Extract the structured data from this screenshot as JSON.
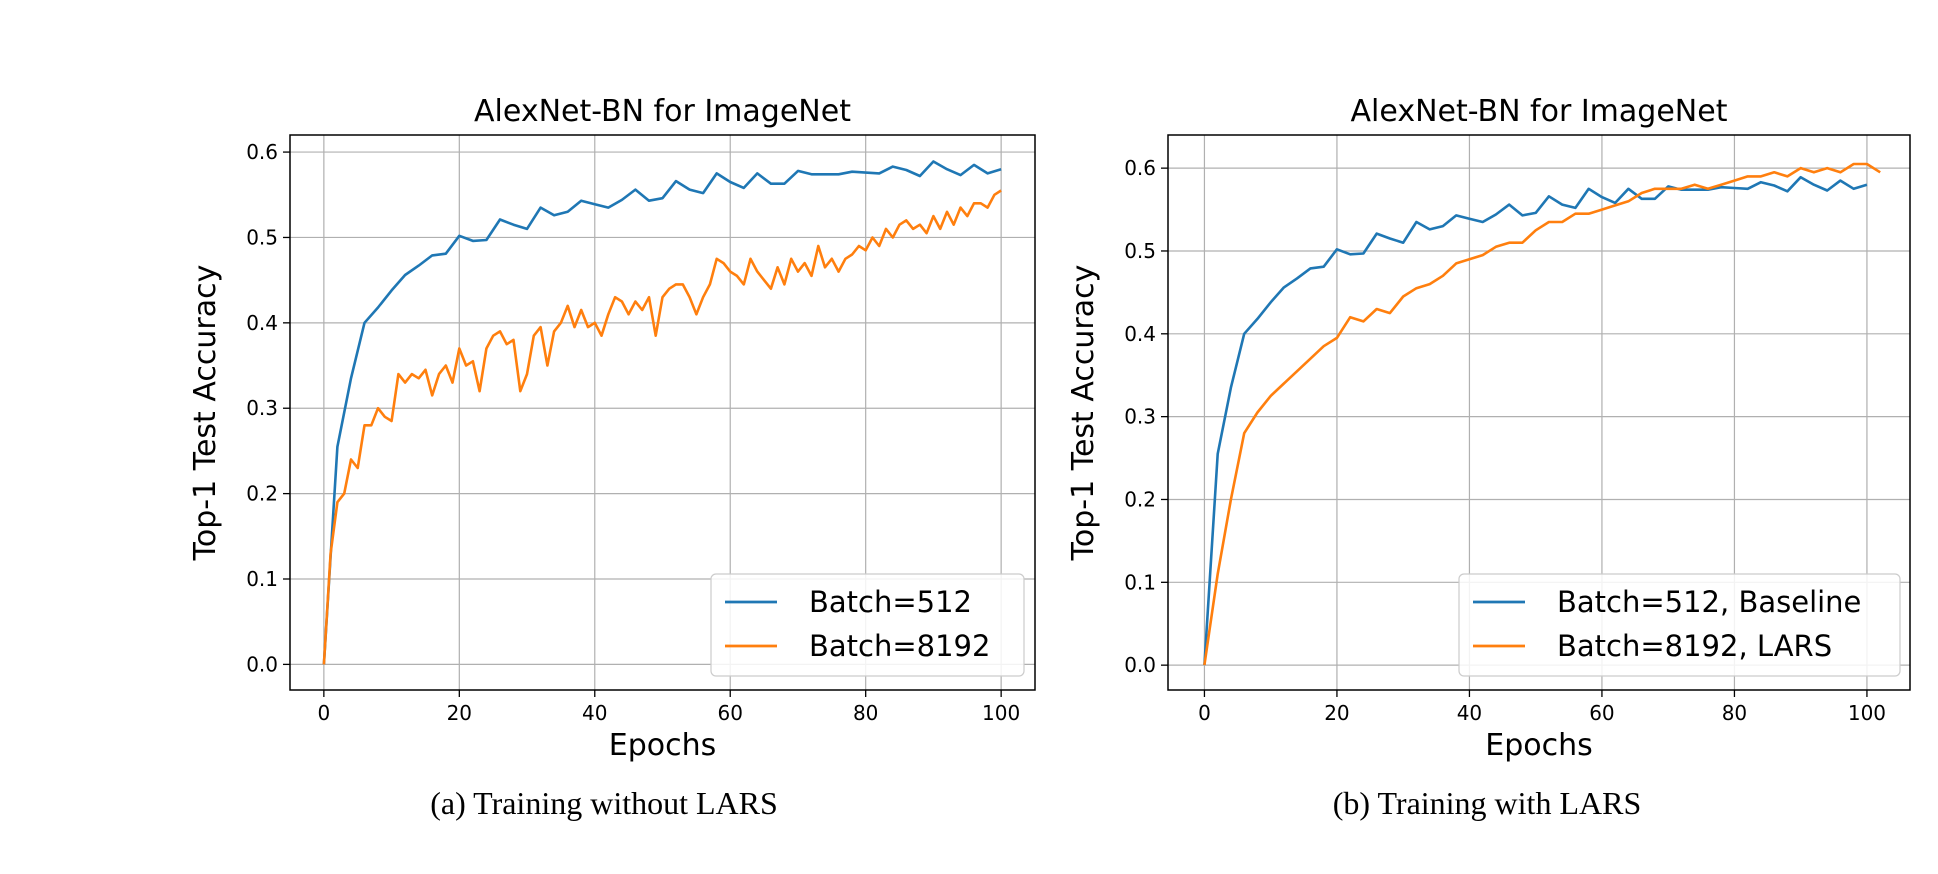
{
  "chart_data": [
    {
      "type": "line",
      "title": "AlexNet-BN for ImageNet",
      "xlabel": "Epochs",
      "ylabel": "Top-1 Test Accuracy",
      "xlim": [
        -5,
        105
      ],
      "ylim": [
        -0.03,
        0.62
      ],
      "xticks": [
        0,
        20,
        40,
        60,
        80,
        100
      ],
      "xtick_labels": [
        "0",
        "20",
        "40",
        "60",
        "80",
        "100"
      ],
      "yticks": [
        0.0,
        0.1,
        0.2,
        0.3,
        0.4,
        0.5,
        0.6
      ],
      "ytick_labels": [
        "0.0",
        "0.1",
        "0.2",
        "0.3",
        "0.4",
        "0.5",
        "0.6"
      ],
      "grid": true,
      "legend_position": "bottom-right",
      "caption": "(a) Training without LARS",
      "series": [
        {
          "name": "Batch=512",
          "color": "#1f77b4",
          "x": [
            0,
            2,
            4,
            6,
            8,
            10,
            12,
            14,
            16,
            18,
            20,
            22,
            24,
            26,
            28,
            30,
            32,
            34,
            36,
            38,
            40,
            42,
            44,
            46,
            48,
            50,
            52,
            54,
            56,
            58,
            60,
            62,
            64,
            66,
            68,
            70,
            72,
            74,
            76,
            78,
            80,
            82,
            84,
            86,
            88,
            90,
            92,
            94,
            96,
            98,
            100
          ],
          "y": [
            0.0,
            0.255,
            0.335,
            0.4,
            0.418,
            0.438,
            0.456,
            0.467,
            0.479,
            0.481,
            0.502,
            0.496,
            0.497,
            0.521,
            0.515,
            0.51,
            0.535,
            0.526,
            0.53,
            0.543,
            0.539,
            0.535,
            0.544,
            0.556,
            0.543,
            0.546,
            0.566,
            0.556,
            0.552,
            0.575,
            0.565,
            0.558,
            0.575,
            0.563,
            0.563,
            0.578,
            0.574,
            0.574,
            0.574,
            0.577,
            0.576,
            0.575,
            0.583,
            0.579,
            0.572,
            0.589,
            0.58,
            0.573,
            0.585,
            0.575,
            0.58
          ]
        },
        {
          "name": "Batch=8192",
          "color": "#ff7f0e",
          "x": [
            0,
            1,
            2,
            3,
            4,
            5,
            6,
            7,
            8,
            9,
            10,
            11,
            12,
            13,
            14,
            15,
            16,
            17,
            18,
            19,
            20,
            21,
            22,
            23,
            24,
            25,
            26,
            27,
            28,
            29,
            30,
            31,
            32,
            33,
            34,
            35,
            36,
            37,
            38,
            39,
            40,
            41,
            42,
            43,
            44,
            45,
            46,
            47,
            48,
            49,
            50,
            51,
            52,
            53,
            54,
            55,
            56,
            57,
            58,
            59,
            60,
            61,
            62,
            63,
            64,
            65,
            66,
            67,
            68,
            69,
            70,
            71,
            72,
            73,
            74,
            75,
            76,
            77,
            78,
            79,
            80,
            81,
            82,
            83,
            84,
            85,
            86,
            87,
            88,
            89,
            90,
            91,
            92,
            93,
            94,
            95,
            96,
            97,
            98,
            99,
            100
          ],
          "y": [
            0.0,
            0.13,
            0.19,
            0.2,
            0.24,
            0.23,
            0.28,
            0.28,
            0.3,
            0.29,
            0.285,
            0.34,
            0.33,
            0.34,
            0.335,
            0.345,
            0.315,
            0.34,
            0.35,
            0.33,
            0.37,
            0.35,
            0.355,
            0.32,
            0.37,
            0.385,
            0.39,
            0.375,
            0.38,
            0.32,
            0.34,
            0.385,
            0.395,
            0.35,
            0.39,
            0.4,
            0.42,
            0.395,
            0.415,
            0.395,
            0.4,
            0.385,
            0.41,
            0.43,
            0.425,
            0.41,
            0.425,
            0.415,
            0.43,
            0.385,
            0.43,
            0.44,
            0.445,
            0.445,
            0.43,
            0.41,
            0.43,
            0.445,
            0.475,
            0.47,
            0.46,
            0.455,
            0.445,
            0.475,
            0.46,
            0.45,
            0.44,
            0.465,
            0.445,
            0.475,
            0.46,
            0.47,
            0.455,
            0.49,
            0.465,
            0.475,
            0.46,
            0.475,
            0.48,
            0.49,
            0.485,
            0.5,
            0.49,
            0.51,
            0.5,
            0.515,
            0.52,
            0.51,
            0.515,
            0.505,
            0.525,
            0.51,
            0.53,
            0.515,
            0.535,
            0.525,
            0.54,
            0.54,
            0.535,
            0.55,
            0.555
          ]
        }
      ]
    },
    {
      "type": "line",
      "title": "AlexNet-BN for ImageNet",
      "xlabel": "Epochs",
      "ylabel": "Top-1 Test Accuracy",
      "xlim": [
        -5.5,
        106.5
      ],
      "ylim": [
        -0.03,
        0.64
      ],
      "xticks": [
        0,
        20,
        40,
        60,
        80,
        100
      ],
      "xtick_labels": [
        "0",
        "20",
        "40",
        "60",
        "80",
        "100"
      ],
      "yticks": [
        0.0,
        0.1,
        0.2,
        0.3,
        0.4,
        0.5,
        0.6
      ],
      "ytick_labels": [
        "0.0",
        "0.1",
        "0.2",
        "0.3",
        "0.4",
        "0.5",
        "0.6"
      ],
      "grid": true,
      "legend_position": "bottom-right",
      "caption": "(b) Training with LARS",
      "series": [
        {
          "name": "Batch=512, Baseline",
          "color": "#1f77b4",
          "x": [
            0,
            2,
            4,
            6,
            8,
            10,
            12,
            14,
            16,
            18,
            20,
            22,
            24,
            26,
            28,
            30,
            32,
            34,
            36,
            38,
            40,
            42,
            44,
            46,
            48,
            50,
            52,
            54,
            56,
            58,
            60,
            62,
            64,
            66,
            68,
            70,
            72,
            74,
            76,
            78,
            80,
            82,
            84,
            86,
            88,
            90,
            92,
            94,
            96,
            98,
            100
          ],
          "y": [
            0.0,
            0.255,
            0.335,
            0.4,
            0.418,
            0.438,
            0.456,
            0.467,
            0.479,
            0.481,
            0.502,
            0.496,
            0.497,
            0.521,
            0.515,
            0.51,
            0.535,
            0.526,
            0.53,
            0.543,
            0.539,
            0.535,
            0.544,
            0.556,
            0.543,
            0.546,
            0.566,
            0.556,
            0.552,
            0.575,
            0.565,
            0.558,
            0.575,
            0.563,
            0.563,
            0.578,
            0.574,
            0.574,
            0.574,
            0.577,
            0.576,
            0.575,
            0.583,
            0.579,
            0.572,
            0.589,
            0.58,
            0.573,
            0.585,
            0.575,
            0.58
          ]
        },
        {
          "name": "Batch=8192, LARS",
          "color": "#ff7f0e",
          "x": [
            0,
            2,
            4,
            6,
            8,
            10,
            12,
            14,
            16,
            18,
            20,
            22,
            24,
            26,
            28,
            30,
            32,
            34,
            36,
            38,
            40,
            42,
            44,
            46,
            48,
            50,
            52,
            54,
            56,
            58,
            60,
            62,
            64,
            66,
            68,
            70,
            72,
            74,
            76,
            78,
            80,
            82,
            84,
            86,
            88,
            90,
            92,
            94,
            96,
            98,
            100,
            102
          ],
          "y": [
            0.0,
            0.11,
            0.2,
            0.28,
            0.305,
            0.325,
            0.34,
            0.355,
            0.37,
            0.385,
            0.395,
            0.42,
            0.415,
            0.43,
            0.425,
            0.445,
            0.455,
            0.46,
            0.47,
            0.485,
            0.49,
            0.495,
            0.505,
            0.51,
            0.51,
            0.525,
            0.535,
            0.535,
            0.545,
            0.545,
            0.55,
            0.555,
            0.56,
            0.57,
            0.575,
            0.575,
            0.575,
            0.58,
            0.575,
            0.58,
            0.585,
            0.59,
            0.59,
            0.595,
            0.59,
            0.6,
            0.595,
            0.6,
            0.595,
            0.605,
            0.605,
            0.595
          ]
        }
      ]
    }
  ]
}
